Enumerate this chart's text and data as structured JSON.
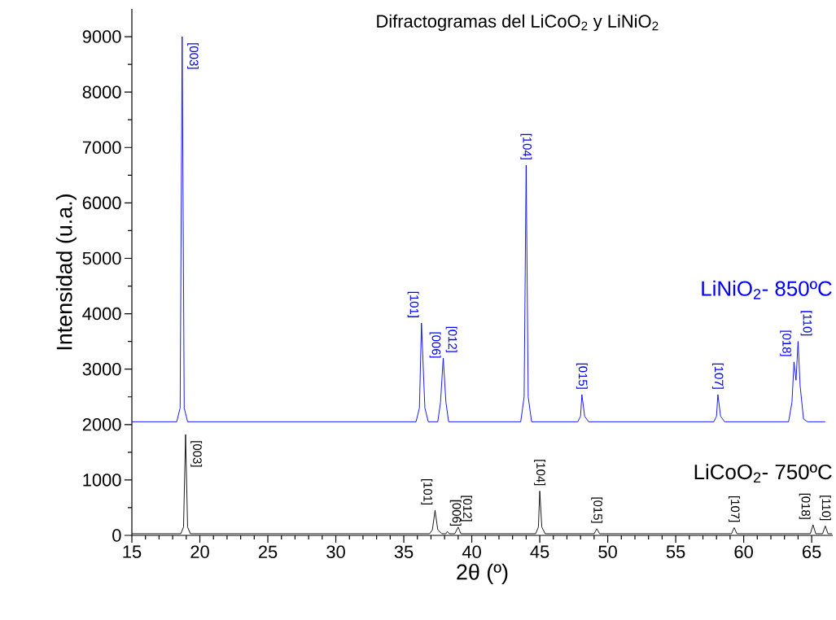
{
  "chart_data": {
    "type": "line",
    "title": "Difractogramas del LiCoO$_{2}$ y LiNiO$_{2}$",
    "xlabel": "2θ (º)",
    "ylabel": "Intensidad (u.a.)",
    "xlim": [
      15,
      66.55
    ],
    "ylim": [
      0,
      9500
    ],
    "xticks": [
      15,
      20,
      25,
      30,
      35,
      40,
      45,
      50,
      55,
      60,
      65
    ],
    "yticks": [
      0,
      1000,
      2000,
      3000,
      4000,
      5000,
      6000,
      7000,
      8000,
      9000
    ],
    "series": [
      {
        "name": "LiNiO$_{2}$- 850ºC",
        "color": "#0000ff",
        "x": [
          15,
          18.3,
          18.55,
          18.7,
          18.85,
          19.1,
          35.9,
          36.15,
          36.3,
          36.55,
          36.8,
          37.5,
          37.7,
          37.9,
          38.1,
          38.3,
          43.6,
          43.85,
          44.0,
          44.15,
          44.4,
          47.8,
          48.0,
          48.1,
          48.3,
          48.6,
          57.8,
          58.0,
          58.1,
          58.3,
          58.6,
          63.3,
          63.55,
          63.7,
          63.85,
          64.0,
          64.15,
          64.4,
          64.7,
          66.0
        ],
        "values": [
          2050,
          2050,
          2300,
          9000,
          2300,
          2050,
          2050,
          2300,
          3830,
          2300,
          2050,
          2050,
          2400,
          3200,
          2400,
          2050,
          2050,
          2500,
          6680,
          2500,
          2050,
          2050,
          2150,
          2540,
          2150,
          2050,
          2050,
          2150,
          2540,
          2150,
          2050,
          2050,
          2400,
          3130,
          2800,
          3500,
          2700,
          2100,
          2050,
          2050
        ]
      },
      {
        "name": "LiCoO$_{2}$- 750ºC",
        "color": "#000000",
        "x": [
          15,
          18.6,
          18.8,
          18.95,
          19.1,
          19.3,
          36.9,
          37.1,
          37.3,
          37.5,
          37.8,
          38.1,
          38.2,
          38.35,
          38.75,
          39.0,
          39.2,
          44.7,
          44.9,
          45.0,
          45.15,
          45.4,
          49.0,
          49.2,
          49.4,
          59.1,
          59.3,
          59.5,
          64.9,
          65.1,
          65.3,
          65.8,
          66.0,
          66.2,
          66.5
        ],
        "values": [
          30,
          30,
          150,
          1820,
          150,
          30,
          30,
          100,
          450,
          100,
          30,
          30,
          70,
          30,
          30,
          150,
          30,
          30,
          150,
          800,
          150,
          30,
          30,
          120,
          30,
          30,
          140,
          30,
          30,
          190,
          30,
          30,
          170,
          30,
          30
        ]
      }
    ],
    "annotations": [
      {
        "text": "[003]",
        "x": 18.7,
        "y": 9000
      },
      {
        "text": "[101]",
        "x": 36.3,
        "y": 3830
      },
      {
        "text": "[006]",
        "x": 36.7,
        "y": 3100
      },
      {
        "text": "[012]",
        "x": 37.9,
        "y": 3200
      },
      {
        "text": "[104]",
        "x": 44.0,
        "y": 6680
      },
      {
        "text": "[015]",
        "x": 48.1,
        "y": 2540
      },
      {
        "text": "[107]",
        "x": 58.1,
        "y": 2540
      },
      {
        "text": "[018]",
        "x": 63.7,
        "y": 3130
      },
      {
        "text": "[110]",
        "x": 64.0,
        "y": 3500
      },
      {
        "text": "[003]",
        "x": 18.95,
        "y": 1820
      },
      {
        "text": "[101]",
        "x": 37.3,
        "y": 450
      },
      {
        "text": "[006]",
        "x": 38.2,
        "y": 70
      },
      {
        "text": "[012]",
        "x": 39.0,
        "y": 150
      },
      {
        "text": "[104]",
        "x": 45.0,
        "y": 800
      },
      {
        "text": "[015]",
        "x": 49.2,
        "y": 120
      },
      {
        "text": "[107]",
        "x": 59.3,
        "y": 140
      },
      {
        "text": "[018]",
        "x": 65.1,
        "y": 190
      },
      {
        "text": "[110]",
        "x": 66.0,
        "y": 170
      }
    ]
  }
}
